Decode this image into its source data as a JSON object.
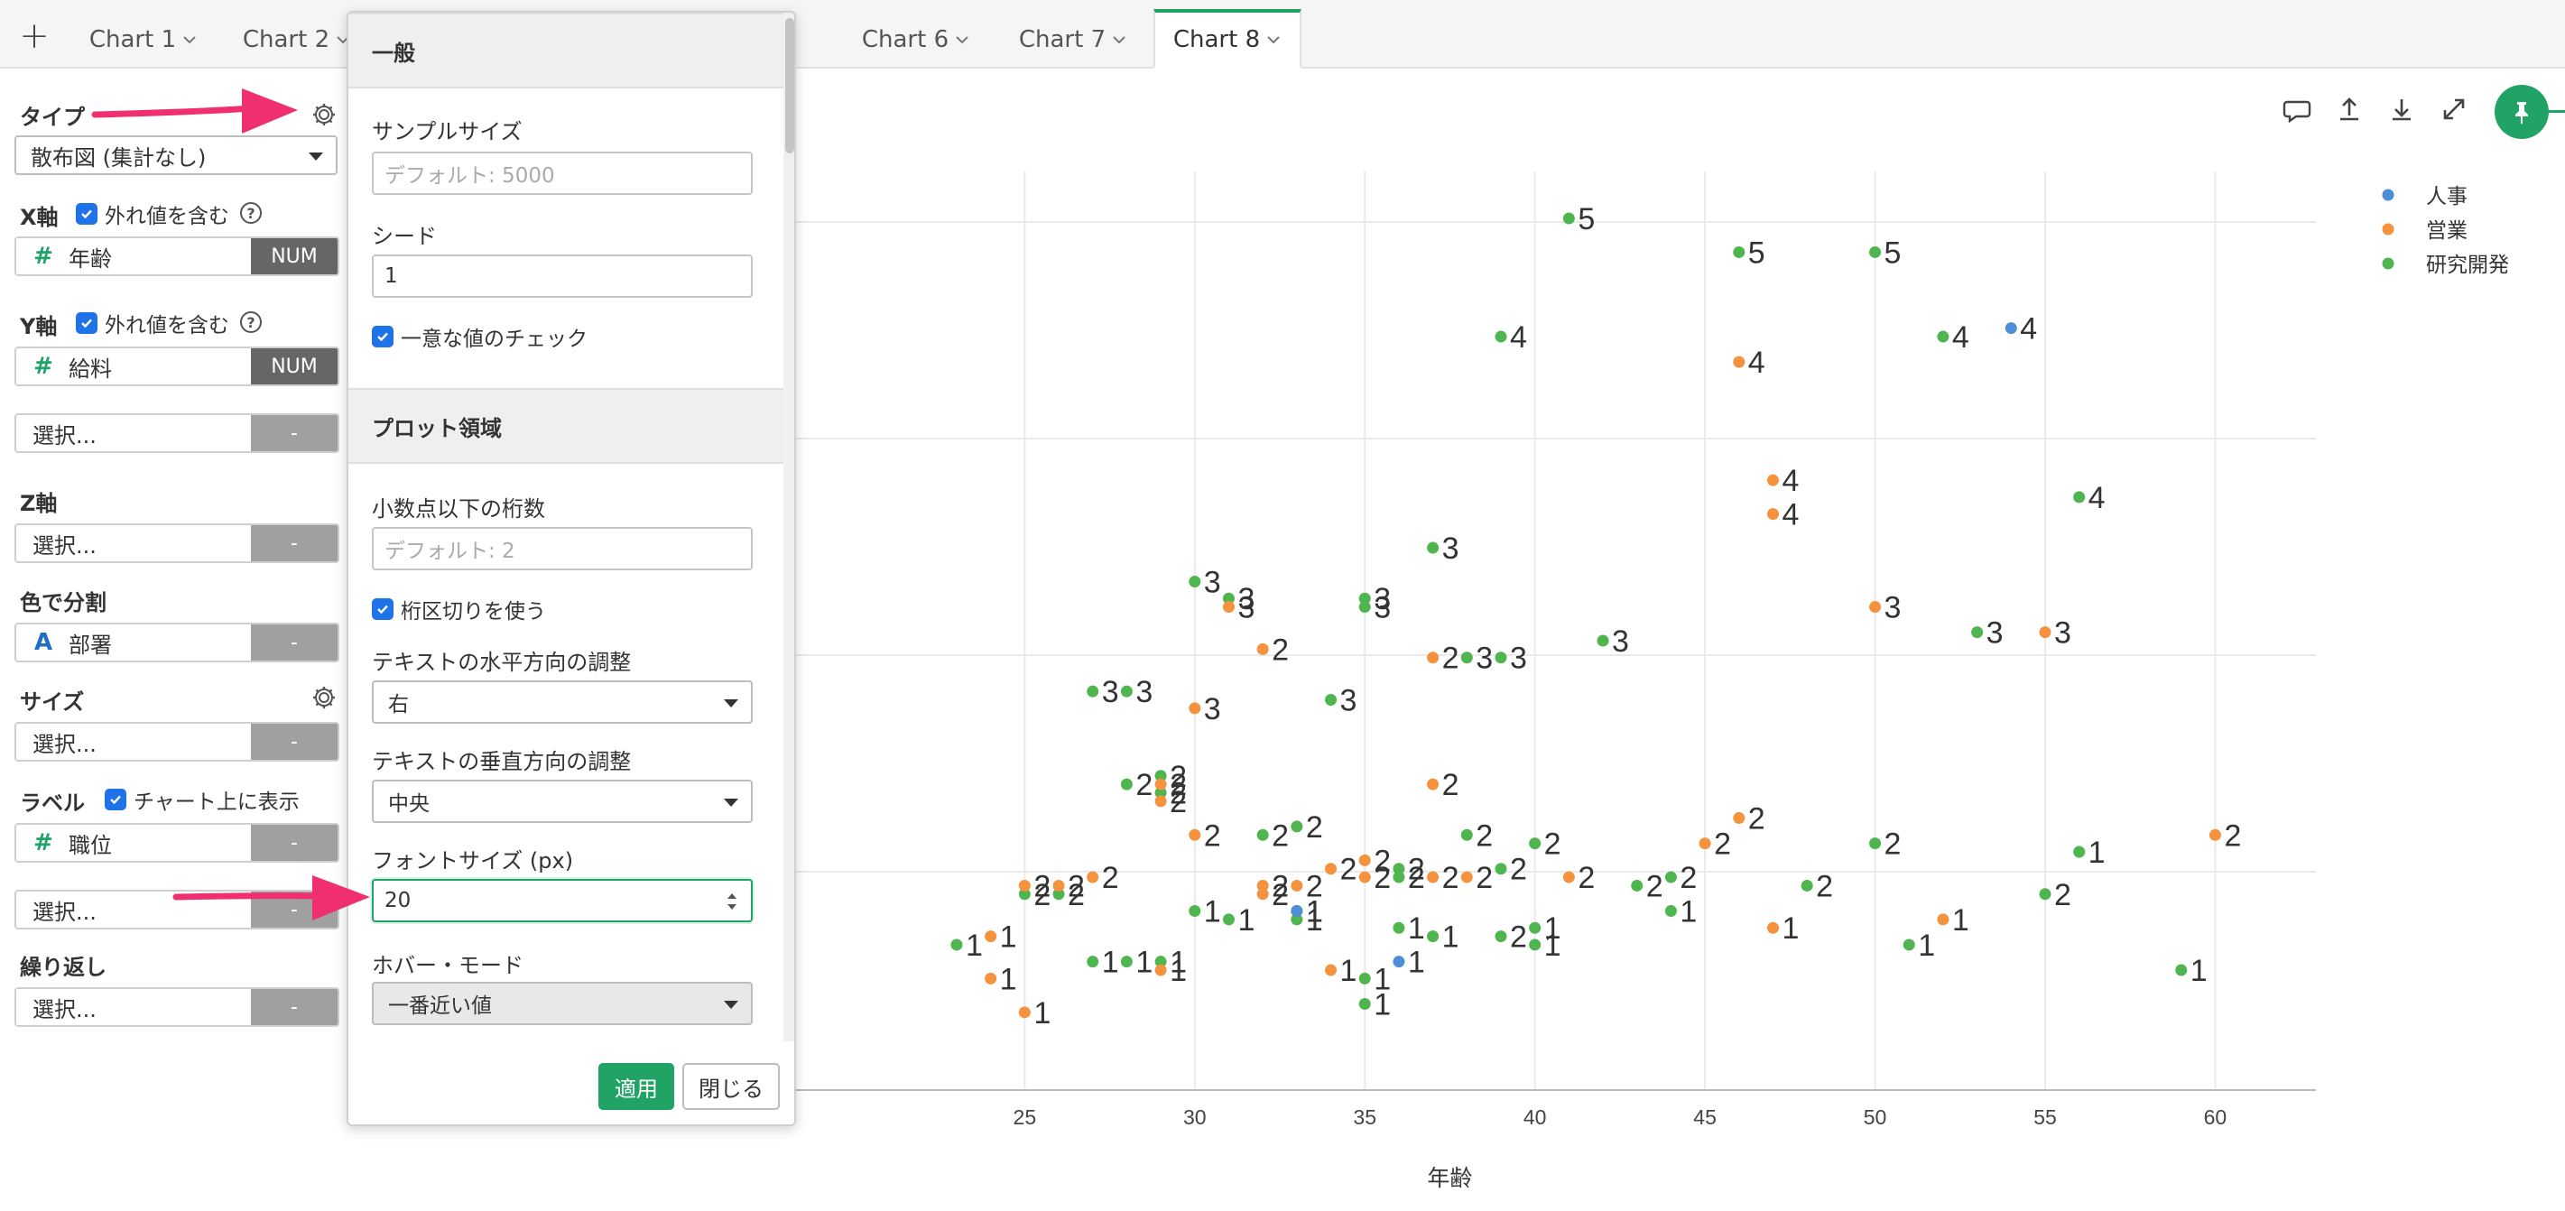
{
  "tabs": [
    {
      "label": "Chart 1"
    },
    {
      "label": "Chart 2"
    },
    {
      "label": "Chart 6"
    },
    {
      "label": "Chart 7"
    },
    {
      "label": "Chart 8"
    }
  ],
  "left": {
    "type_label": "タイプ",
    "type_value": "散布図 (集計なし)",
    "x_label": "X軸",
    "x_outlier": "外れ値を含む",
    "x_field": "年齢",
    "x_tag": "NUM",
    "y_label": "Y軸",
    "y_outlier": "外れ値を含む",
    "y_field": "給料",
    "y_tag": "NUM",
    "extra_select": "選択...",
    "extra_tag": "-",
    "z_label": "Z軸",
    "z_select": "選択...",
    "z_tag": "-",
    "color_label": "色で分割",
    "color_field": "部署",
    "color_tag": "-",
    "size_label": "サイズ",
    "size_select": "選択...",
    "size_tag": "-",
    "label_label": "ラベル",
    "label_check": "チャート上に表示",
    "label_field": "職位",
    "label_tag": "-",
    "label_select": "選択...",
    "label_select_tag": "-",
    "repeat_label": "繰り返し",
    "repeat_select": "選択...",
    "repeat_tag": "-"
  },
  "popup": {
    "general_header": "一般",
    "sample_size_label": "サンプルサイズ",
    "sample_size_placeholder": "デフォルト: 5000",
    "seed_label": "シード",
    "seed_value": "1",
    "unique_check": "一意な値のチェック",
    "plot_header": "プロット領域",
    "decimals_label": "小数点以下の桁数",
    "decimals_placeholder": "デフォルト: 2",
    "thousands_check": "桁区切りを使う",
    "h_align_label": "テキストの水平方向の調整",
    "h_align_value": "右",
    "v_align_label": "テキストの垂直方向の調整",
    "v_align_value": "中央",
    "font_size_label": "フォントサイズ (px)",
    "font_size_value": "20",
    "hover_label": "ホバー・モード",
    "hover_value": "一番近い値",
    "apply_label": "適用",
    "close_label": "閉じる"
  },
  "colors": {
    "accent": "#21a366",
    "series_hr": "#4c8fd6",
    "series_sales": "#f5923e",
    "series_rnd": "#4fb54f",
    "arrow": "#f0306e"
  },
  "icons": [
    "plus-icon",
    "gear-icon",
    "comment-icon",
    "upload-icon",
    "download-icon",
    "expand-icon",
    "pin-icon"
  ],
  "chart_data": {
    "type": "scatter",
    "xlabel": "年齢",
    "ylabel": "",
    "x_ticks": [
      25,
      30,
      35,
      40,
      45,
      50,
      55,
      60
    ],
    "xlim": [
      17.96,
      62.96
    ],
    "ylim": [
      0,
      1
    ],
    "grid": true,
    "legend_position": "top-right",
    "point_labels": "職位",
    "series": [
      {
        "name": "人事",
        "points": [
          [
            54,
            0.87,
            4
          ],
          [
            33,
            0.18,
            1
          ],
          [
            36,
            0.12,
            1
          ]
        ]
      },
      {
        "name": "営業",
        "points": [
          [
            46,
            0.83,
            4
          ],
          [
            47,
            0.69,
            4
          ],
          [
            47,
            0.65,
            4
          ],
          [
            50,
            0.54,
            3
          ],
          [
            55,
            0.51,
            3
          ],
          [
            31,
            0.54,
            3
          ],
          [
            32,
            0.49,
            2
          ],
          [
            37,
            0.48,
            2
          ],
          [
            30,
            0.42,
            3
          ],
          [
            37,
            0.33,
            2
          ],
          [
            29,
            0.33,
            2
          ],
          [
            29,
            0.31,
            2
          ],
          [
            30,
            0.27,
            2
          ],
          [
            25,
            0.21,
            2
          ],
          [
            26,
            0.21,
            2
          ],
          [
            27,
            0.22,
            2
          ],
          [
            32,
            0.21,
            2
          ],
          [
            35,
            0.24,
            2
          ],
          [
            34,
            0.23,
            2
          ],
          [
            35,
            0.22,
            2
          ],
          [
            37,
            0.22,
            2
          ],
          [
            38,
            0.22,
            2
          ],
          [
            41,
            0.22,
            2
          ],
          [
            45,
            0.26,
            2
          ],
          [
            46,
            0.29,
            2
          ],
          [
            60,
            0.27,
            2
          ],
          [
            47,
            0.16,
            1
          ],
          [
            52,
            0.17,
            1
          ],
          [
            24,
            0.15,
            1
          ],
          [
            29,
            0.11,
            1
          ],
          [
            34,
            0.11,
            1
          ],
          [
            24,
            0.1,
            1
          ],
          [
            25,
            0.06,
            1
          ],
          [
            32,
            0.2,
            2
          ],
          [
            33,
            0.21,
            2
          ]
        ]
      },
      {
        "name": "研究開発",
        "points": [
          [
            41,
            1.0,
            5
          ],
          [
            46,
            0.96,
            5
          ],
          [
            50,
            0.96,
            5
          ],
          [
            39,
            0.86,
            4
          ],
          [
            52,
            0.86,
            4
          ],
          [
            56,
            0.67,
            4
          ],
          [
            37,
            0.61,
            3
          ],
          [
            30,
            0.57,
            3
          ],
          [
            31,
            0.55,
            3
          ],
          [
            35,
            0.55,
            3
          ],
          [
            35,
            0.54,
            3
          ],
          [
            38,
            0.48,
            3
          ],
          [
            39,
            0.48,
            3
          ],
          [
            42,
            0.5,
            3
          ],
          [
            53,
            0.51,
            3
          ],
          [
            27,
            0.44,
            3
          ],
          [
            28,
            0.44,
            3
          ],
          [
            34,
            0.43,
            3
          ],
          [
            28,
            0.33,
            2
          ],
          [
            29,
            0.32,
            2
          ],
          [
            29,
            0.34,
            2
          ],
          [
            32,
            0.27,
            2
          ],
          [
            33,
            0.28,
            2
          ],
          [
            38,
            0.27,
            2
          ],
          [
            40,
            0.26,
            2
          ],
          [
            44,
            0.22,
            2
          ],
          [
            43,
            0.21,
            2
          ],
          [
            39,
            0.23,
            2
          ],
          [
            36,
            0.23,
            2
          ],
          [
            36,
            0.22,
            2
          ],
          [
            48,
            0.21,
            2
          ],
          [
            55,
            0.2,
            2
          ],
          [
            25,
            0.2,
            2
          ],
          [
            26,
            0.2,
            2
          ],
          [
            50,
            0.26,
            2
          ],
          [
            56,
            0.25,
            1
          ],
          [
            30,
            0.18,
            1
          ],
          [
            31,
            0.17,
            1
          ],
          [
            33,
            0.18,
            1
          ],
          [
            33,
            0.17,
            1
          ],
          [
            36,
            0.16,
            1
          ],
          [
            37,
            0.15,
            1
          ],
          [
            39,
            0.15,
            2
          ],
          [
            40,
            0.16,
            1
          ],
          [
            40,
            0.14,
            1
          ],
          [
            44,
            0.18,
            1
          ],
          [
            51,
            0.14,
            1
          ],
          [
            23,
            0.14,
            1
          ],
          [
            27,
            0.12,
            1
          ],
          [
            28,
            0.12,
            1
          ],
          [
            29,
            0.12,
            1
          ],
          [
            35,
            0.1,
            1
          ],
          [
            35,
            0.07,
            1
          ],
          [
            59,
            0.11,
            1
          ]
        ]
      }
    ]
  }
}
